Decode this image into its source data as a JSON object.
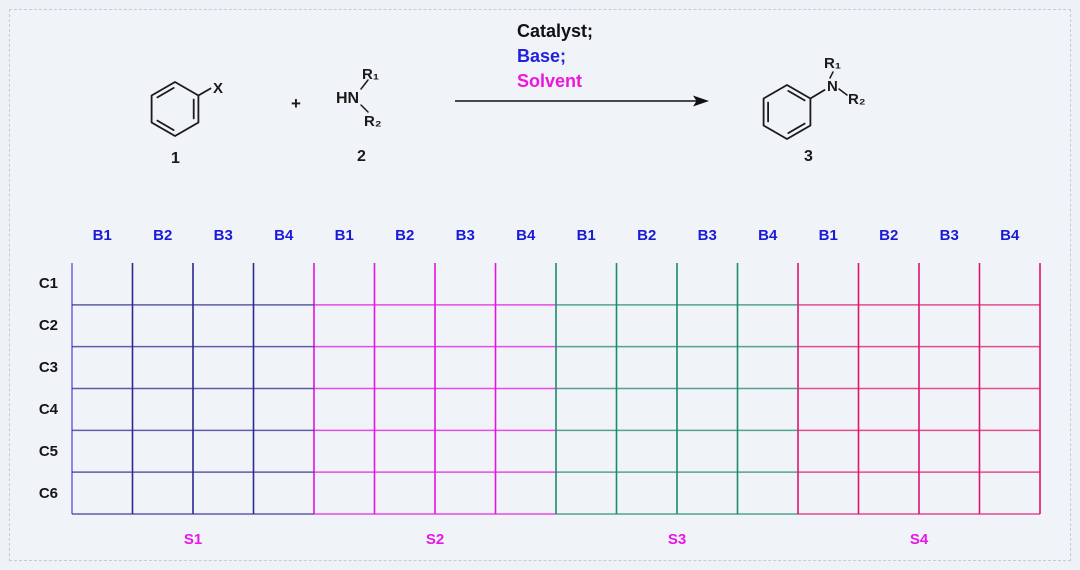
{
  "scheme": {
    "reactant1": {
      "substituent": "X",
      "number": "1"
    },
    "plus_sign": "+",
    "reactant2": {
      "text": "HN",
      "r1": "R₁",
      "r2": "R₂",
      "number": "2"
    },
    "conditions": {
      "catalyst": "Catalyst;",
      "base": "Base;",
      "solvent": "Solvent"
    },
    "product": {
      "n": "N",
      "r1": "R₁",
      "r2": "R₂",
      "number": "3"
    }
  },
  "plate": {
    "column_headers": [
      "B1",
      "B2",
      "B3",
      "B4",
      "B1",
      "B2",
      "B3",
      "B4",
      "B1",
      "B2",
      "B3",
      "B4",
      "B1",
      "B2",
      "B3",
      "B4"
    ],
    "row_labels": [
      "C1",
      "C2",
      "C3",
      "C4",
      "C5",
      "C6"
    ],
    "sections": [
      {
        "label": "S1",
        "color": "#2b2b90"
      },
      {
        "label": "S2",
        "color": "#e214e2"
      },
      {
        "label": "S3",
        "color": "#1d8a6c"
      },
      {
        "label": "S4",
        "color": "#e0146e"
      }
    ],
    "rows": 6,
    "columns_per_section": 4
  },
  "colors": {
    "header_label_blue": "#1b1bd6",
    "row_label_black": "#151515",
    "section_label_magenta": "#e816e8",
    "condition_catalyst": "#111111",
    "condition_base": "#2222dd",
    "condition_solvent": "#ee14e0",
    "left_axis_border": "#7a68e8",
    "bond_black": "#1a1a1a",
    "background": "#f0f3f8"
  }
}
